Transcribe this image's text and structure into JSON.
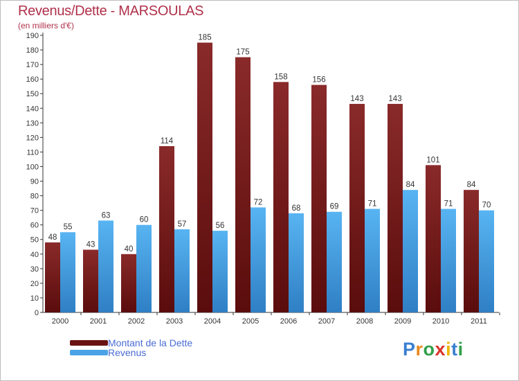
{
  "header": {
    "title": "Revenus/Dette - MARSOULAS",
    "subtitle": "(en milliers d'€)"
  },
  "colors": {
    "debt": "#7a1b1b",
    "revenue": "#4aa3e6",
    "title": "#b0304a",
    "legend_text": "#4a6cd4"
  },
  "chart_data": {
    "type": "bar",
    "title": "Revenus/Dette - MARSOULAS",
    "ylabel": "(en milliers d'€)",
    "xlabel": "",
    "categories": [
      "2000",
      "2001",
      "2002",
      "2003",
      "2004",
      "2005",
      "2006",
      "2007",
      "2008",
      "2009",
      "2010",
      "2011"
    ],
    "series": [
      {
        "name": "Montant de la Dette",
        "values": [
          48,
          43,
          40,
          114,
          185,
          175,
          158,
          156,
          143,
          143,
          101,
          84
        ]
      },
      {
        "name": "Revenus",
        "values": [
          55,
          63,
          60,
          57,
          56,
          72,
          68,
          69,
          71,
          84,
          71,
          70
        ]
      }
    ],
    "ylim": [
      0,
      190
    ],
    "ytick_step": 10,
    "grid": false,
    "legend": "bottom-left"
  },
  "legend": {
    "items": [
      {
        "label": "Montant de la Dette"
      },
      {
        "label": "Revenus"
      }
    ]
  },
  "logo": {
    "letters": [
      "P",
      "r",
      "o",
      "x",
      "i",
      "t",
      "i"
    ],
    "colors": [
      "#3a7fd0",
      "#e98a1f",
      "#2f9f4a",
      "#d8332a",
      "#f0b400",
      "#3a7fd0",
      "#2f9f4a"
    ]
  }
}
